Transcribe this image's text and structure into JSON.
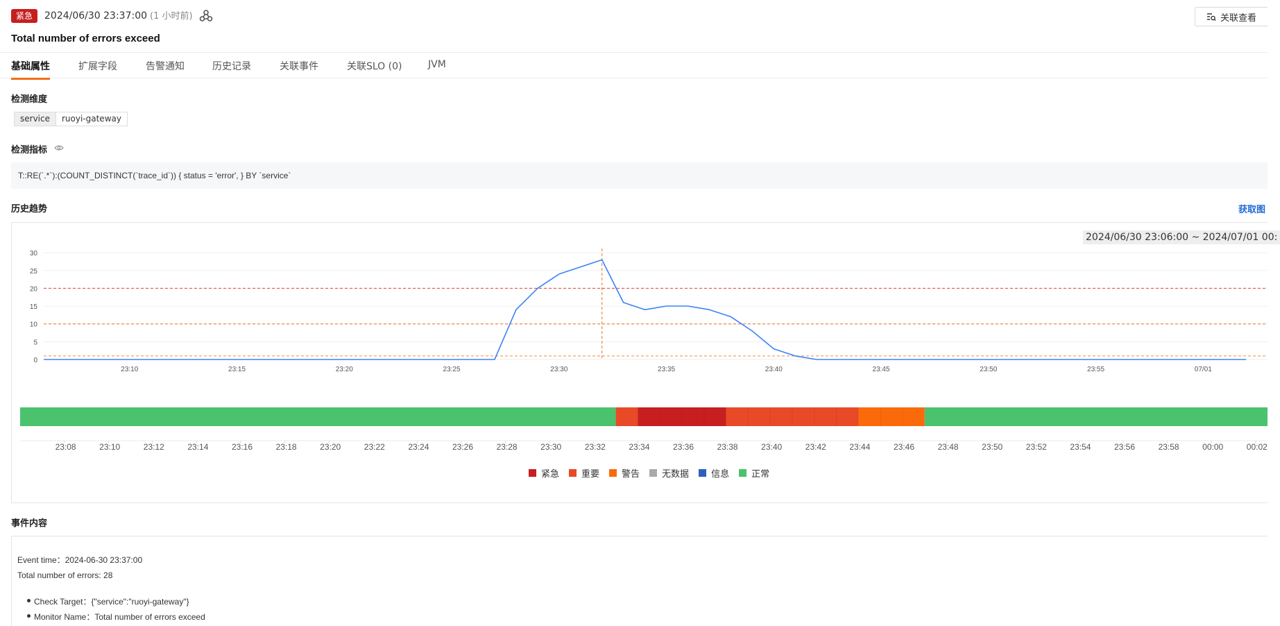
{
  "header": {
    "badge": "紧急",
    "time": "2024/06/30 23:37:00",
    "relative": "(1 小时前)",
    "title": "Total number of errors exceed",
    "assoc_button": "关联查看"
  },
  "tabs": [
    "基础属性",
    "扩展字段",
    "告警通知",
    "历史记录",
    "关联事件",
    "关联SLO (0)",
    "JVM"
  ],
  "dimension": {
    "title": "检测维度",
    "key": "service",
    "value": "ruoyi-gateway"
  },
  "metric": {
    "title": "检测指标",
    "query": "T::RE(`.*`):(COUNT_DISTINCT(`trace_id`)) { status = 'error', } BY `service`"
  },
  "history": {
    "title": "历史趋势",
    "link": "获取图",
    "range": "2024/06/30 23:06:00 ~ 2024/07/01 00:"
  },
  "chart_data": [
    {
      "type": "line",
      "x_ticks": [
        "23:10",
        "23:15",
        "23:20",
        "23:25",
        "23:30",
        "23:35",
        "23:40",
        "23:45",
        "23:50",
        "23:55",
        "07/01"
      ],
      "y_ticks": [
        "0",
        "5",
        "10",
        "15",
        "20",
        "25",
        "30"
      ],
      "ylim": [
        0,
        30
      ],
      "x": [
        "23:06",
        "23:07",
        "23:08",
        "23:09",
        "23:10",
        "23:11",
        "23:12",
        "23:13",
        "23:14",
        "23:15",
        "23:16",
        "23:17",
        "23:18",
        "23:19",
        "23:20",
        "23:21",
        "23:22",
        "23:23",
        "23:24",
        "23:25",
        "23:26",
        "23:27",
        "23:28",
        "23:29",
        "23:30",
        "23:31",
        "23:32",
        "23:33",
        "23:34",
        "23:35",
        "23:36",
        "23:37",
        "23:38",
        "23:39",
        "23:40",
        "23:41",
        "23:42",
        "23:43",
        "23:44",
        "23:45",
        "23:46",
        "23:47",
        "23:48",
        "23:49",
        "23:50",
        "23:51",
        "23:52",
        "23:53",
        "23:54",
        "23:55",
        "23:56",
        "23:57",
        "23:58",
        "23:59",
        "00:00",
        "00:01",
        "00:02"
      ],
      "values": [
        0,
        0,
        0,
        0,
        0,
        0,
        0,
        0,
        0,
        0,
        0,
        0,
        0,
        0,
        0,
        0,
        0,
        0,
        0,
        0,
        0,
        0,
        14,
        20,
        24,
        26,
        28,
        16,
        14,
        15,
        15,
        14,
        12,
        8,
        3,
        1,
        0,
        0,
        0,
        0,
        0,
        0,
        0,
        0,
        0,
        0,
        0,
        0,
        0,
        0,
        0,
        0,
        0,
        0,
        0,
        0,
        0
      ],
      "thresholds": [
        {
          "value": 20,
          "color": "#e0403a"
        },
        {
          "value": 10,
          "color": "#f06e1a"
        },
        {
          "value": 1,
          "color": "#f08a3a"
        }
      ],
      "marker_x": "23:32",
      "line_color": "#3b82f6"
    },
    {
      "type": "heatmap",
      "x_ticks": [
        "23:08",
        "23:10",
        "23:12",
        "23:14",
        "23:16",
        "23:18",
        "23:20",
        "23:22",
        "23:24",
        "23:26",
        "23:28",
        "23:30",
        "23:32",
        "23:34",
        "23:36",
        "23:38",
        "23:40",
        "23:42",
        "23:44",
        "23:46",
        "23:48",
        "23:50",
        "23:52",
        "23:54",
        "23:56",
        "23:58",
        "00:00",
        "00:02"
      ],
      "start": "23:06",
      "segments": [
        {
          "from": "23:06",
          "to": "23:33",
          "status": "正常"
        },
        {
          "from": "23:33",
          "to": "23:34",
          "status": "重要"
        },
        {
          "from": "23:34",
          "to": "23:36",
          "status": "紧急"
        },
        {
          "from": "23:36",
          "to": "23:38",
          "status": "紧急"
        },
        {
          "from": "23:38",
          "to": "23:44",
          "status": "重要"
        },
        {
          "from": "23:44",
          "to": "23:47",
          "status": "警告"
        },
        {
          "from": "23:47",
          "to": "00:03",
          "status": "正常"
        }
      ],
      "legend": [
        {
          "label": "紧急",
          "color": "#c71f1f"
        },
        {
          "label": "重要",
          "color": "#e84a27"
        },
        {
          "label": "警告",
          "color": "#fb6a0a"
        },
        {
          "label": "无数据",
          "color": "#aaaaaa"
        },
        {
          "label": "信息",
          "color": "#2e5fbf"
        },
        {
          "label": "正常",
          "color": "#4bc26e"
        }
      ]
    }
  ],
  "event": {
    "title": "事件内容",
    "lines": [
      "Event time：2024-06-30 23:37:00",
      "Total number of errors: 28"
    ],
    "items": [
      "Check Target：{\"service\":\"ruoyi-gateway\"}",
      "Monitor Name：Total number of errors exceed"
    ]
  }
}
